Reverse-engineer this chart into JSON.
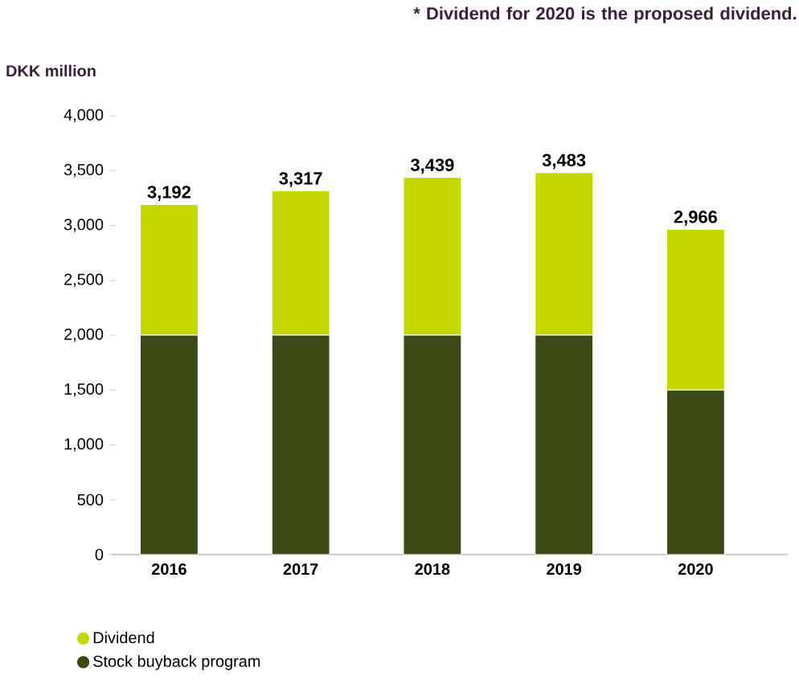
{
  "chart_data": {
    "type": "bar",
    "stacked": true,
    "ylabel": "DKK million",
    "annotations": [
      "* Dividend for 2020 is the proposed dividend."
    ],
    "categories": [
      "2016",
      "2017",
      "2018",
      "2019",
      "2020"
    ],
    "series": [
      {
        "name": "Stock buyback program",
        "color": "#3b4a14",
        "values": [
          2000,
          2000,
          2000,
          2000,
          1500
        ]
      },
      {
        "name": "Dividend",
        "color": "#c5d900",
        "values": [
          1192,
          1317,
          1439,
          1483,
          1466
        ]
      }
    ],
    "totals": [
      "3,192",
      "3,317",
      "3,439",
      "3,483",
      "2,966"
    ],
    "ylim": [
      0,
      4000
    ],
    "yticks": [
      {
        "value": 0,
        "label": "0"
      },
      {
        "value": 500,
        "label": "500"
      },
      {
        "value": 1000,
        "label": "1,000"
      },
      {
        "value": 1500,
        "label": "1,500"
      },
      {
        "value": 2000,
        "label": "2,000"
      },
      {
        "value": 2500,
        "label": "2,500"
      },
      {
        "value": 3000,
        "label": "3,000"
      },
      {
        "value": 3500,
        "label": "3,500"
      },
      {
        "value": 4000,
        "label": "4,000"
      }
    ],
    "grid": false,
    "legend": "bottom left",
    "marker": "circle"
  }
}
